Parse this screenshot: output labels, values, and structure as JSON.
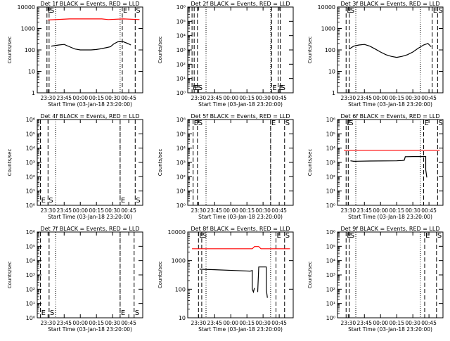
{
  "colors": {
    "background": "#ffffff",
    "axis": "#000000",
    "events": "#000000",
    "lld": "#ff0000"
  },
  "x_tick_labels": [
    "23:30",
    "23:45",
    "00:00",
    "00:15",
    "00:30",
    "00:45"
  ],
  "chart_data": [
    {
      "type": "line",
      "title": "Det 1f BLACK = Events, RED = LLD",
      "xlabel": "Start Time (03-Jan-18 23:20:00)",
      "ylabel": "Counts/sec",
      "yscale": "log",
      "ylim": [
        1,
        10000
      ],
      "ytick_labels": [
        "1",
        "10",
        "100",
        "1000",
        "10000"
      ],
      "markers": [
        {
          "label": "E",
          "value": "23:29"
        },
        {
          "label": "S",
          "value": "23:31"
        },
        {
          "label": "E",
          "value": "00:39"
        },
        {
          "label": "S",
          "value": "00:51"
        }
      ],
      "series": [
        {
          "x": [
            "23:30",
            "23:50",
            "00:10",
            "00:20",
            "00:26",
            "00:40",
            "00:55"
          ],
          "y": [
            2500,
            2800,
            2800,
            2800,
            2600,
            2800,
            2600
          ]
        },
        {
          "x": [
            "23:33",
            "23:40",
            "23:45",
            "23:50",
            "23:55",
            "00:00",
            "00:05",
            "00:10",
            "00:15",
            "00:20",
            "00:25",
            "00:28",
            "00:31",
            "00:35",
            "00:40",
            "00:44",
            "00:47"
          ],
          "y": [
            150,
            170,
            180,
            140,
            110,
            100,
            100,
            100,
            105,
            115,
            130,
            140,
            190,
            240,
            240,
            200,
            170
          ]
        }
      ]
    },
    {
      "type": "line",
      "title": "Det 2f BLACK = Events, RED = LLD",
      "xlabel": "Start Time (03-Jan-18 23:20:00)",
      "ylabel": "Counts/sec",
      "yscale": "log",
      "ylim": [
        1,
        1000000
      ],
      "ytick_labels": [
        "10⁰",
        "10¹",
        "10²",
        "10³",
        "10⁴",
        "10⁵",
        "10⁶"
      ],
      "markers": [
        {
          "label": "E",
          "value": "23:24"
        },
        {
          "label": "E",
          "value": "23:26"
        },
        {
          "label": "S",
          "value": "23:29"
        },
        {
          "label": "E",
          "value": "00:38"
        },
        {
          "label": "E",
          "value": "00:44"
        },
        {
          "label": "S",
          "value": "00:46"
        }
      ],
      "series": []
    },
    {
      "type": "line",
      "title": "Det 3f BLACK = Events, RED = LLD",
      "xlabel": "Start Time (03-Jan-18 23:20:00)",
      "ylabel": "Counts/sec",
      "yscale": "log",
      "ylim": [
        1,
        10000
      ],
      "ytick_labels": [
        "1",
        "10",
        "100",
        "1000",
        "10000"
      ],
      "markers": [
        {
          "label": "E",
          "value": "23:28"
        },
        {
          "label": "S",
          "value": "23:31"
        },
        {
          "label": "E",
          "value": "00:48"
        },
        {
          "label": "S",
          "value": "00:53"
        }
      ],
      "series": [
        {
          "x": [
            "23:31",
            "23:35",
            "23:40",
            "23:45",
            "23:50",
            "23:55",
            "00:00",
            "00:05",
            "00:10",
            "00:15",
            "00:20",
            "00:25",
            "00:30",
            "00:35",
            "00:40",
            "00:44",
            "00:47"
          ],
          "y": [
            110,
            150,
            170,
            180,
            150,
            110,
            80,
            60,
            50,
            45,
            50,
            60,
            80,
            120,
            170,
            200,
            140
          ]
        }
      ]
    },
    {
      "type": "line",
      "title": "Det 4f BLACK = Events, RED = LLD",
      "xlabel": "Start Time (03-Jan-18 23:20:00)",
      "ylabel": "Counts/sec",
      "yscale": "log",
      "ylim": [
        1,
        1000000
      ],
      "ytick_labels": [
        "10⁰",
        "10¹",
        "10²",
        "10³",
        "10⁴",
        "10⁵",
        "10⁶"
      ],
      "markers": [
        {
          "label": "E",
          "value": "23:23"
        },
        {
          "label": "S",
          "value": "23:30"
        },
        {
          "label": "E",
          "value": "00:37"
        },
        {
          "label": "S",
          "value": "00:51"
        }
      ],
      "series": []
    },
    {
      "type": "line",
      "title": "Det 5f BLACK = Events, RED = LLD",
      "xlabel": "Start Time (03-Jan-18 23:20:00)",
      "ylabel": "Counts/sec",
      "yscale": "log",
      "ylim": [
        1,
        1000000
      ],
      "ytick_labels": [
        "10⁰",
        "10¹",
        "10²",
        "10³",
        "10⁴",
        "10⁵",
        "10⁶"
      ],
      "markers": [
        {
          "label": "E",
          "value": "23:25"
        },
        {
          "label": "S",
          "value": "23:29"
        },
        {
          "label": "E",
          "value": "00:37"
        },
        {
          "label": "S",
          "value": "00:50"
        }
      ],
      "series": []
    },
    {
      "type": "line",
      "title": "Det 6f BLACK = Events, RED = LLD",
      "xlabel": "Start Time (03-Jan-18 23:20:00)",
      "ylabel": "Counts/sec",
      "yscale": "log",
      "ylim": [
        1,
        1000000
      ],
      "ytick_labels": [
        "10⁰",
        "10¹",
        "10²",
        "10³",
        "10⁴",
        "10⁵",
        "10⁶"
      ],
      "markers": [
        {
          "label": "E",
          "value": "23:28"
        },
        {
          "label": "S",
          "value": "23:30"
        },
        {
          "label": "E",
          "value": "00:40"
        },
        {
          "label": "S",
          "value": "00:53"
        }
      ],
      "series": [
        {
          "x": [
            "23:26",
            "00:55"
          ],
          "y": [
            7000,
            7000
          ]
        },
        {
          "x": [
            "23:32",
            "23:35",
            "23:50",
            "00:15",
            "00:20",
            "00:22",
            "00:23",
            "00:30",
            "00:42",
            "00:42",
            "00:43"
          ],
          "y": [
            1300,
            1200,
            1250,
            1300,
            1350,
            1400,
            2500,
            2600,
            2600,
            300,
            90
          ]
        }
      ]
    },
    {
      "type": "line",
      "title": "Det 7f BLACK = Events, RED = LLD",
      "xlabel": "Start Time (03-Jan-18 23:20:00)",
      "ylabel": "Counts/sec",
      "yscale": "log",
      "ylim": [
        1,
        1000000
      ],
      "ytick_labels": [
        "10⁰",
        "10¹",
        "10²",
        "10³",
        "10⁴",
        "10⁵",
        "10⁶"
      ],
      "markers": [
        {
          "label": "E",
          "value": "23:23"
        },
        {
          "label": "S",
          "value": "23:31"
        },
        {
          "label": "E",
          "value": "00:37"
        },
        {
          "label": "S",
          "value": "00:50"
        }
      ],
      "series": []
    },
    {
      "type": "line",
      "title": "Det 8f BLACK = Events, RED = LLD",
      "xlabel": "Start Time (03-Jan-18 23:20:00)",
      "ylabel": "Counts/sec",
      "yscale": "log",
      "ylim": [
        10,
        10000
      ],
      "ytick_labels": [
        "10",
        "100",
        "1000",
        "10000"
      ],
      "markers": [
        {
          "label": "E",
          "value": "23:30"
        },
        {
          "label": "S",
          "value": "23:33"
        },
        {
          "label": "E",
          "value": "00:42"
        },
        {
          "label": "S",
          "value": "00:50"
        }
      ],
      "series": [
        {
          "x": [
            "23:24",
            "00:20",
            "00:22",
            "00:26",
            "00:28",
            "00:55"
          ],
          "y": [
            2600,
            2600,
            3100,
            3100,
            2600,
            2600
          ]
        },
        {
          "x": [
            "23:31",
            "23:45",
            "00:05",
            "00:18",
            "00:20",
            "00:20",
            "00:21",
            "00:22"
          ],
          "y": [
            500,
            480,
            450,
            430,
            450,
            100,
            80,
            110
          ]
        },
        {
          "x": [
            "00:25",
            "00:26",
            "00:33",
            "00:33",
            "00:34"
          ],
          "y": [
            80,
            600,
            600,
            100,
            50
          ]
        }
      ]
    },
    {
      "type": "line",
      "title": "Det 9f BLACK = Events, RED = LLD",
      "xlabel": "Start Time (03-Jan-18 23:20:00)",
      "ylabel": "Counts/sec",
      "yscale": "log",
      "ylim": [
        1,
        1000000
      ],
      "ytick_labels": [
        "10⁰",
        "10¹",
        "10²",
        "10³",
        "10⁴",
        "10⁵",
        "10⁶"
      ],
      "markers": [
        {
          "label": "E",
          "value": "23:28"
        },
        {
          "label": "S",
          "value": "23:31"
        },
        {
          "label": "E",
          "value": "00:41"
        },
        {
          "label": "S",
          "value": "00:52"
        }
      ],
      "series": []
    }
  ]
}
